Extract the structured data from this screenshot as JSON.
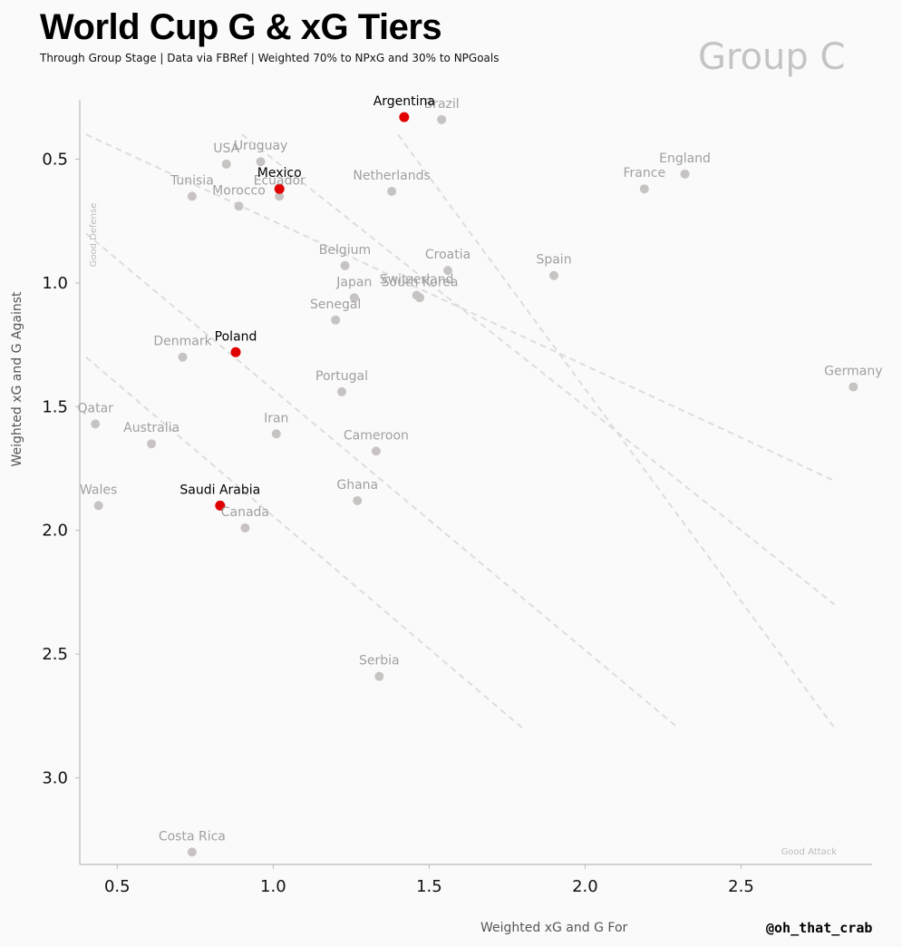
{
  "header": {
    "title": "World Cup G & xG Tiers",
    "subtitle": "Through Group Stage | Data via FBRef | Weighted 70% to NPxG and 30% to NPGoals",
    "group": "Group C"
  },
  "footer": {
    "credit": "@oh_that_crab"
  },
  "colors": {
    "highlight": "#e00000",
    "other": "#c8c3c3",
    "highlight_label": "#000000",
    "other_label": "#a0a0a0",
    "tier_line": "#dddddd"
  },
  "chart_data": {
    "type": "scatter",
    "xlabel": "Weighted xG and G For",
    "ylabel": "Weighted xG and G Against",
    "xlim": [
      0.38,
      2.92
    ],
    "ylim": [
      3.35,
      0.26
    ],
    "y_inverted": true,
    "xticks": [
      "0.5",
      "1.0",
      "1.5",
      "2.0",
      "2.5"
    ],
    "yticks": [
      "0.5",
      "1.0",
      "1.5",
      "2.0",
      "2.5",
      "3.0"
    ],
    "grid": false,
    "annotations": {
      "good_defense": "Good Defense",
      "good_attack": "Good Attack"
    },
    "tier_lines": [
      [
        [
          0.4,
          0.4
        ],
        [
          2.8,
          1.8
        ]
      ],
      [
        [
          0.9,
          0.4
        ],
        [
          2.8,
          2.3
        ]
      ],
      [
        [
          1.4,
          0.4
        ],
        [
          2.8,
          2.8
        ]
      ],
      [
        [
          0.4,
          0.8
        ],
        [
          2.3,
          2.8
        ]
      ],
      [
        [
          0.4,
          1.3
        ],
        [
          1.8,
          2.8
        ]
      ]
    ],
    "points": [
      {
        "team": "Argentina",
        "x": 1.42,
        "y": 0.33,
        "highlight": true
      },
      {
        "team": "Brazil",
        "x": 1.54,
        "y": 0.34,
        "highlight": false
      },
      {
        "team": "USA",
        "x": 0.85,
        "y": 0.52,
        "highlight": false
      },
      {
        "team": "Uruguay",
        "x": 0.96,
        "y": 0.51,
        "highlight": false
      },
      {
        "team": "Mexico",
        "x": 1.02,
        "y": 0.62,
        "highlight": true
      },
      {
        "team": "Ecuador",
        "x": 1.02,
        "y": 0.65,
        "highlight": false
      },
      {
        "team": "Tunisia",
        "x": 0.74,
        "y": 0.65,
        "highlight": false
      },
      {
        "team": "Morocco",
        "x": 0.89,
        "y": 0.69,
        "highlight": false
      },
      {
        "team": "Netherlands",
        "x": 1.38,
        "y": 0.63,
        "highlight": false
      },
      {
        "team": "France",
        "x": 2.19,
        "y": 0.62,
        "highlight": false
      },
      {
        "team": "England",
        "x": 2.32,
        "y": 0.56,
        "highlight": false
      },
      {
        "team": "Belgium",
        "x": 1.23,
        "y": 0.93,
        "highlight": false
      },
      {
        "team": "Croatia",
        "x": 1.56,
        "y": 0.95,
        "highlight": false
      },
      {
        "team": "Spain",
        "x": 1.9,
        "y": 0.97,
        "highlight": false
      },
      {
        "team": "Japan",
        "x": 1.26,
        "y": 1.06,
        "highlight": false
      },
      {
        "team": "Switzerland",
        "x": 1.46,
        "y": 1.05,
        "highlight": false
      },
      {
        "team": "South Korea",
        "x": 1.47,
        "y": 1.06,
        "highlight": false
      },
      {
        "team": "Senegal",
        "x": 1.2,
        "y": 1.15,
        "highlight": false
      },
      {
        "team": "Denmark",
        "x": 0.71,
        "y": 1.3,
        "highlight": false
      },
      {
        "team": "Poland",
        "x": 0.88,
        "y": 1.28,
        "highlight": true
      },
      {
        "team": "Portugal",
        "x": 1.22,
        "y": 1.44,
        "highlight": false
      },
      {
        "team": "Germany",
        "x": 2.86,
        "y": 1.42,
        "highlight": false
      },
      {
        "team": "Qatar",
        "x": 0.43,
        "y": 1.57,
        "highlight": false
      },
      {
        "team": "Australia",
        "x": 0.61,
        "y": 1.65,
        "highlight": false
      },
      {
        "team": "Iran",
        "x": 1.01,
        "y": 1.61,
        "highlight": false
      },
      {
        "team": "Cameroon",
        "x": 1.33,
        "y": 1.68,
        "highlight": false
      },
      {
        "team": "Wales",
        "x": 0.44,
        "y": 1.9,
        "highlight": false
      },
      {
        "team": "Saudi Arabia",
        "x": 0.83,
        "y": 1.9,
        "highlight": true
      },
      {
        "team": "Canada",
        "x": 0.91,
        "y": 1.99,
        "highlight": false
      },
      {
        "team": "Ghana",
        "x": 1.27,
        "y": 1.88,
        "highlight": false
      },
      {
        "team": "Serbia",
        "x": 1.34,
        "y": 2.59,
        "highlight": false
      },
      {
        "team": "Costa Rica",
        "x": 0.74,
        "y": 3.3,
        "highlight": false
      }
    ]
  }
}
